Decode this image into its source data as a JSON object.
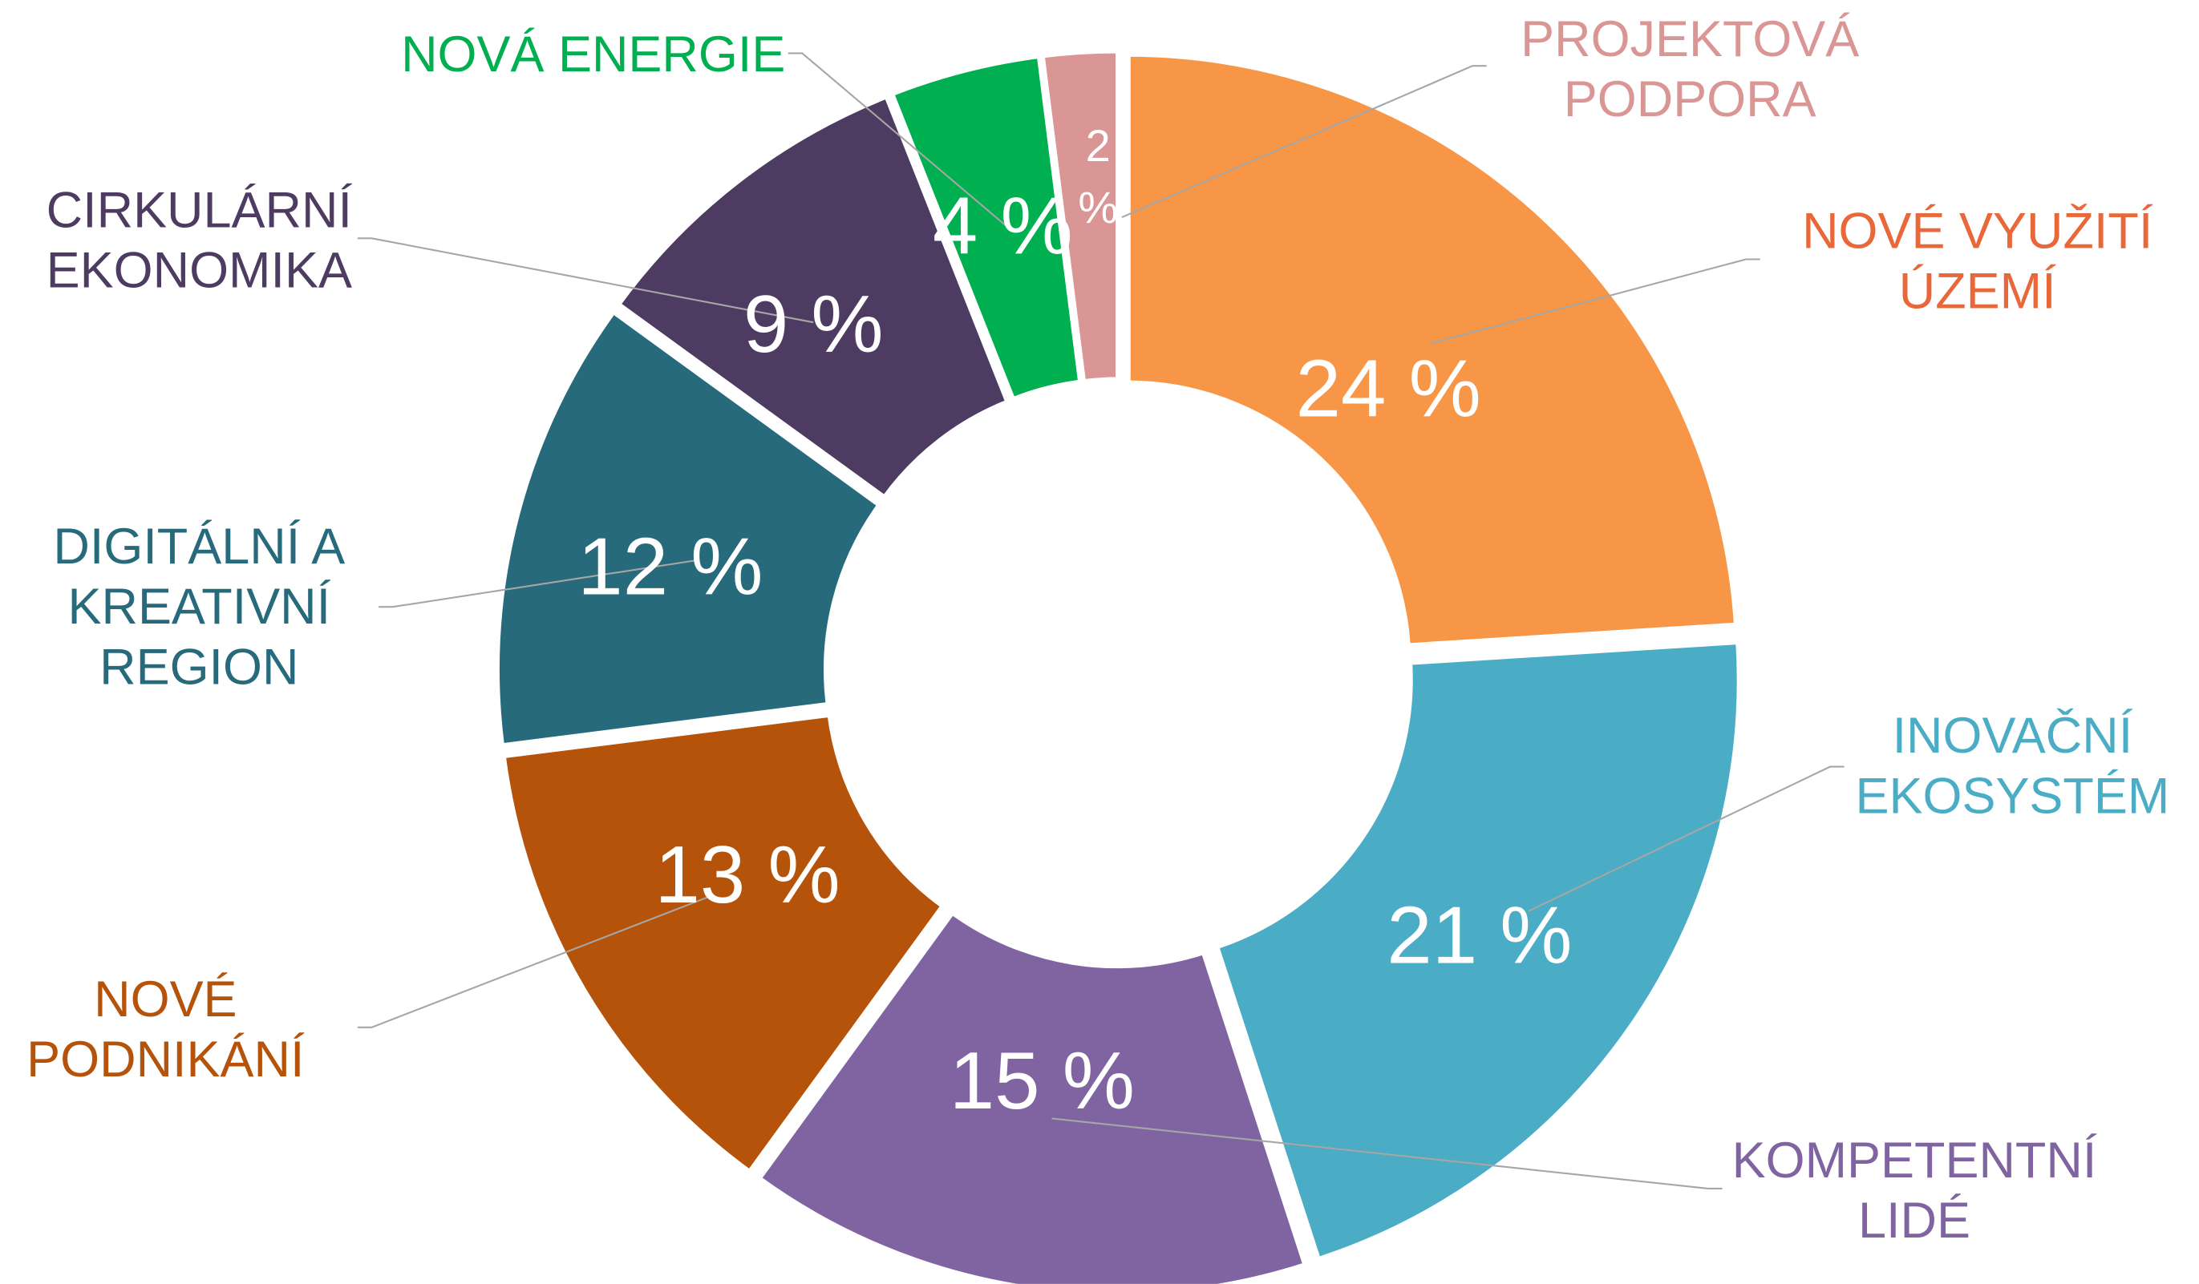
{
  "chart_data": {
    "type": "donut",
    "categories": [
      "NOVÉ VYUŽITÍ ÚZEMÍ",
      "INOVAČNÍ EKOSYSTÉM",
      "KOMPETENTNÍ LIDÉ",
      "NOVÉ PODNIKÁNÍ",
      "DIGITÁLNÍ A KREATIVNÍ REGION",
      "CIRKULÁRNÍ EKONOMIKA",
      "NOVÁ ENERGIE",
      "PROJEKTOVÁ PODPORA"
    ],
    "values": [
      24,
      21,
      15,
      13,
      12,
      9,
      4,
      2
    ],
    "value_labels": [
      "24 %",
      "21 %",
      "15 %",
      "13 %",
      "12 %",
      "9 %",
      "4 %",
      "2 %"
    ],
    "colors": [
      "#F79646",
      "#4BACC6",
      "#8064A2",
      "#B45309",
      "#276A7C",
      "#4E3B62",
      "#00B050",
      "#D99694"
    ],
    "label_colors": [
      "#E8683A",
      "#4BACC6",
      "#8064A2",
      "#B45309",
      "#276A7C",
      "#4E3B62",
      "#00B050",
      "#D99694"
    ]
  }
}
